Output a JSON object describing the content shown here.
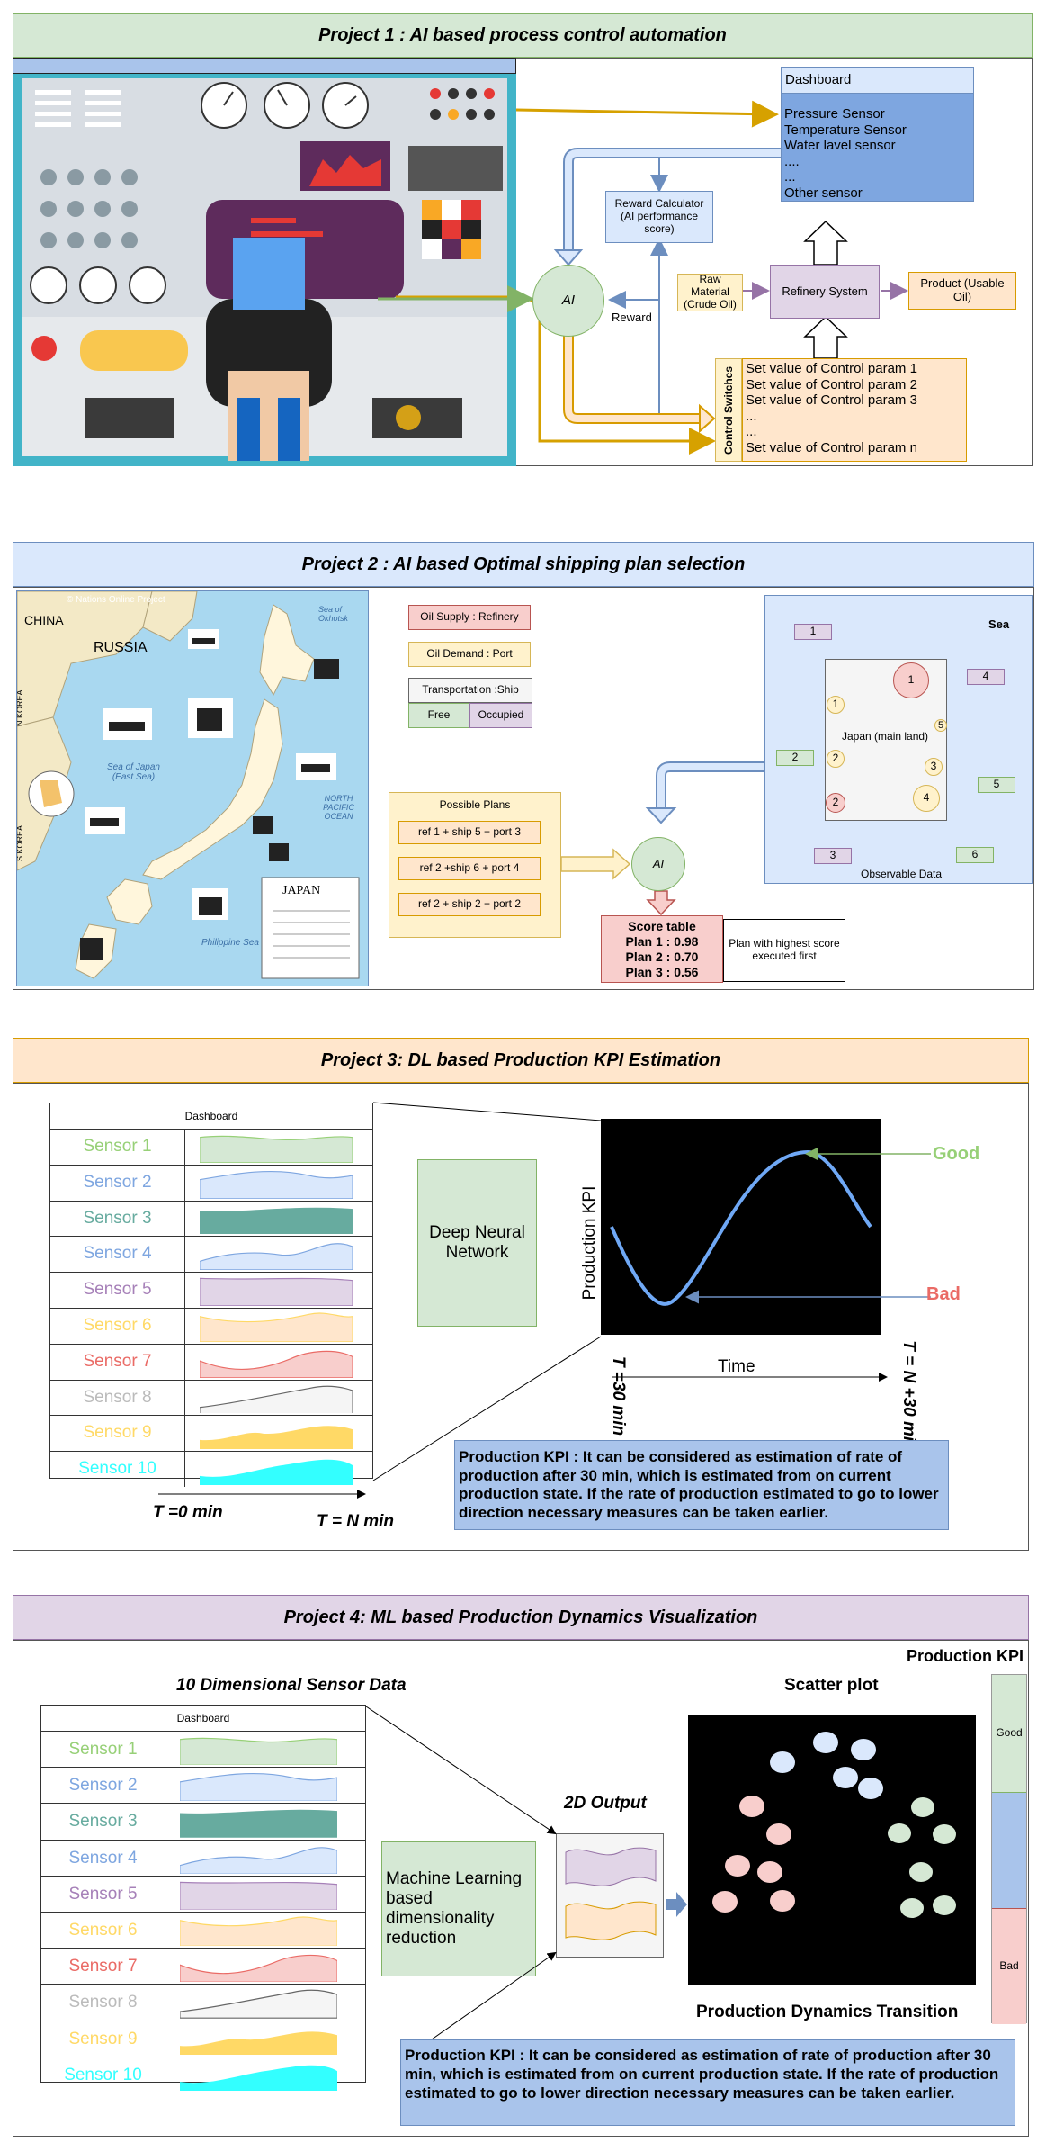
{
  "colors": {
    "green_bg": "#d5e8d4",
    "blue_bg": "#dae8fc",
    "orange_bg": "#ffe6cc",
    "purple_bg": "#e1d5e7",
    "yellow_bg": "#fff2cc",
    "red_bg": "#f8cecc",
    "dash_blue": "#7ea6e0",
    "kpi_blue": "#a9c4eb"
  },
  "project1": {
    "title": "Project 1 : AI based process control automation",
    "dashboard": {
      "title": "Dashboard",
      "lines": [
        "Pressure Sensor",
        "Temperature Sensor",
        "Water lavel sensor",
        "....",
        "...",
        "Other sensor"
      ]
    },
    "reward_calc": [
      "Reward Calculator",
      "(AI performance",
      "score)"
    ],
    "ai_label": "AI",
    "reward_label": "Reward",
    "raw_material": [
      "Raw",
      "Material",
      "(Crude Oil)"
    ],
    "refinery": "Refinery System",
    "product": [
      "Product (Usable",
      "Oil)"
    ],
    "control_switches": "Control Switches",
    "control_params": [
      "Set value of Control param 1",
      "Set value of Control param 2",
      "Set value of Control param 3",
      "...",
      "...",
      "Set value of Control param n"
    ]
  },
  "project2": {
    "title": "Project 2 : AI based Optimal shipping plan selection",
    "map": {
      "china": "CHINA",
      "russia": "RUSSIA",
      "japan": "JAPAN",
      "sea_of_japan": [
        "Sea of Japan",
        "(East Sea)"
      ],
      "pacific": [
        "NORTH PACIFIC",
        "OCEAN"
      ],
      "philippine": "Philippine Sea",
      "sea_okhotsk": [
        "Sea of",
        "Okhotsk"
      ],
      "credit": "© Nations Online Project",
      "korea_n": "N.KOREA",
      "korea_s": "S.KOREA"
    },
    "legend": {
      "oil_supply": "Oil Supply : Refinery",
      "oil_demand": "Oil Demand : Port",
      "transport": "Transportation :Ship",
      "free": "Free",
      "occupied": "Occupied"
    },
    "plans": {
      "title": "Possible Plans",
      "items": [
        "ref 1 + ship 5 + port 3",
        "ref 2 +ship 6 + port 4",
        "ref  2 + ship 2 + port 2"
      ]
    },
    "ai_label": "AI",
    "score_table": {
      "title": "Score table",
      "rows": [
        "Plan 1 : 0.98",
        "Plan 2 : 0.70",
        "Plan 3 : 0.56"
      ]
    },
    "highest": [
      "Plan with highest score",
      "executed first"
    ],
    "sea_label": "Sea",
    "japan_main": "Japan (main land)",
    "observable": "Observable Data",
    "ships": [
      "1",
      "4",
      "2",
      "5",
      "3",
      "6"
    ],
    "nodes": [
      "1",
      "1",
      "5",
      "2",
      "3",
      "2",
      "4"
    ]
  },
  "project3": {
    "title": "Project 3: DL based Production KPI Estimation",
    "dashboard_title": "Dashboard",
    "sensors": [
      "Sensor 1",
      "Sensor 2",
      "Sensor 3",
      "Sensor 4",
      "Sensor 5",
      "Sensor 6",
      "Sensor 7",
      "Sensor 8",
      "Sensor 9",
      "Sensor 10"
    ],
    "t0": "T =0 min",
    "tn": "T = N min",
    "dnn": [
      "Deep Neural",
      "Network"
    ],
    "ylabel": "Production KPI",
    "good": "Good",
    "bad": "Bad",
    "t30": "T =30 min",
    "tn30": "T = N +30 min",
    "time": "Time",
    "kpi_desc": "Production KPI : It can be considered as estimation of rate of production after 30 min, which is estimated from on current production state. If the rate of production estimated to go to lower direction necessary measures can be taken earlier."
  },
  "project4": {
    "title": "Project 4: ML based Production Dynamics Visualization",
    "heading_sensor": "10 Dimensional Sensor Data",
    "dashboard_title": "Dashboard",
    "sensors": [
      "Sensor 1",
      "Sensor 2",
      "Sensor 3",
      "Sensor 4",
      "Sensor 5",
      "Sensor 6",
      "Sensor 7",
      "Sensor 8",
      "Sensor 9",
      "Sensor 10"
    ],
    "ml": [
      "Machine Learning",
      "based",
      "dimensionality",
      "reduction"
    ],
    "output2d": "2D Output",
    "scatter": "Scatter plot",
    "kpi_label": "Production KPI",
    "good": "Good",
    "bad": "Bad",
    "transition": "Production Dynamics Transition",
    "kpi_desc": "Production KPI : It can be considered as estimation of rate of production after 30 min, which is estimated from on current production state. If the rate of production estimated to go to lower direction necessary measures can be taken earlier."
  },
  "sensor_colors": [
    "#97d077",
    "#7ea6e0",
    "#67ab9f",
    "#7ea6e0",
    "#a680b8",
    "#ffd966",
    "#ea6b66",
    "#bbbbbb",
    "#ffd966",
    "#33ffff"
  ],
  "sensor_fills": [
    "#d5e8d4",
    "#dae8fc",
    "#67ab9f",
    "#dae8fc",
    "#e1d5e7",
    "#ffe6cc",
    "#f8cecc",
    "#f5f5f5",
    "#ffd966",
    "#33ffff"
  ]
}
